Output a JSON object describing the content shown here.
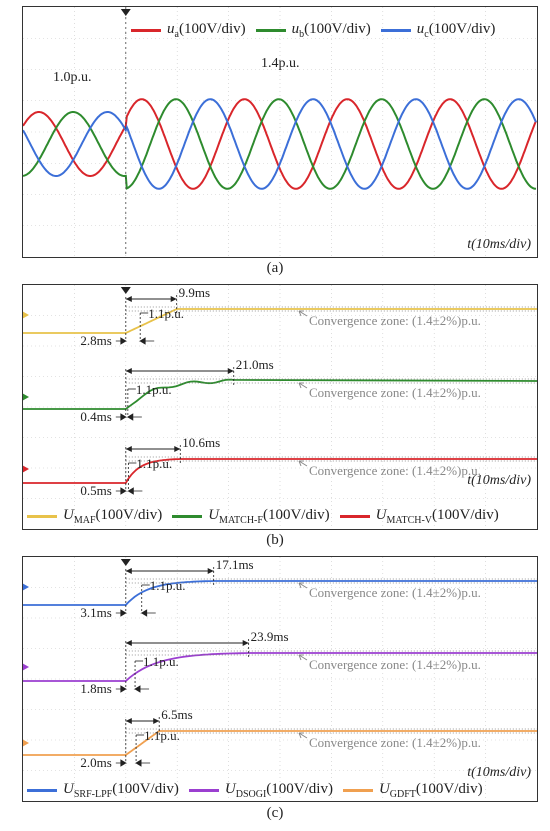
{
  "captions": {
    "a": "(a)",
    "b": "(b)",
    "c": "(c)"
  },
  "time_axis_label": "t(10ms/div)",
  "convergence_label": "Convergence zone: (1.4±2%)p.u.",
  "colors": {
    "ua": "#d9262b",
    "ub": "#2e8b2e",
    "uc": "#3c6fd8",
    "maf": "#e8c24a",
    "match_f": "#2e8b2e",
    "match_v": "#d9262b",
    "srf": "#3c6fd8",
    "dsogi": "#9b3fd0",
    "gdft": "#f0a050",
    "grid": "#c8c8c8",
    "annot": "#222222",
    "conv": "#888888"
  },
  "chart_data": [
    {
      "type": "line",
      "panel": "a",
      "title": "",
      "xlabel": "t(10ms/div)",
      "legend": [
        {
          "sym": "u",
          "sub": "a",
          "unit": "(100V/div)",
          "color": "#d9262b"
        },
        {
          "sym": "u",
          "sub": "b",
          "unit": "(100V/div)",
          "color": "#2e8b2e"
        },
        {
          "sym": "u",
          "sub": "c",
          "unit": "(100V/div)",
          "color": "#3c6fd8"
        }
      ],
      "annotations": [
        "1.0p.u.",
        "1.4p.u."
      ],
      "x_range_ms": [
        0,
        100
      ],
      "step_time_ms": 20,
      "frequency_hz": 50,
      "amplitude_before_pu": 1.0,
      "amplitude_after_pu": 1.4,
      "series": [
        {
          "name": "ua",
          "phase_deg": 0
        },
        {
          "name": "ub",
          "phase_deg": -120
        },
        {
          "name": "uc",
          "phase_deg": 120
        }
      ]
    },
    {
      "type": "line",
      "panel": "b",
      "xlabel": "t(10ms/div)",
      "legend": [
        {
          "sym": "U",
          "sub": "MAF",
          "unit": "(100V/div)",
          "color": "#e8c24a"
        },
        {
          "sym": "U",
          "sub": "MATCH-F",
          "unit": "(100V/div)",
          "color": "#2e8b2e"
        },
        {
          "sym": "U",
          "sub": "MATCH-V",
          "unit": "(100V/div)",
          "color": "#d9262b"
        }
      ],
      "step_time_ms": 20,
      "initial_pu": 1.0,
      "final_pu": 1.4,
      "traces": [
        {
          "name": "MAF",
          "delay_label": "2.8ms",
          "settle_label": "9.9ms",
          "delay_ms": 2.8,
          "settle_ms": 9.9,
          "pu_label": "1.1p.u."
        },
        {
          "name": "MATCH-F",
          "delay_label": "0.4ms",
          "settle_label": "21.0ms",
          "delay_ms": 0.4,
          "settle_ms": 21.0,
          "pu_label": "1.1p.u."
        },
        {
          "name": "MATCH-V",
          "delay_label": "0.5ms",
          "settle_label": "10.6ms",
          "delay_ms": 0.5,
          "settle_ms": 10.6,
          "pu_label": "1.1p.u."
        }
      ]
    },
    {
      "type": "line",
      "panel": "c",
      "xlabel": "t(10ms/div)",
      "legend": [
        {
          "sym": "U",
          "sub": "SRF-LPF",
          "unit": "(100V/div)",
          "color": "#3c6fd8"
        },
        {
          "sym": "U",
          "sub": "DSOGI",
          "unit": "(100V/div)",
          "color": "#9b3fd0"
        },
        {
          "sym": "U",
          "sub": "GDFT",
          "unit": "(100V/div)",
          "color": "#f0a050"
        }
      ],
      "step_time_ms": 20,
      "initial_pu": 1.0,
      "final_pu": 1.4,
      "traces": [
        {
          "name": "SRF-LPF",
          "delay_label": "3.1ms",
          "settle_label": "17.1ms",
          "delay_ms": 3.1,
          "settle_ms": 17.1,
          "pu_label": "1.1p.u."
        },
        {
          "name": "DSOGI",
          "delay_label": "1.8ms",
          "settle_label": "23.9ms",
          "delay_ms": 1.8,
          "settle_ms": 23.9,
          "pu_label": "1.1p.u."
        },
        {
          "name": "GDFT",
          "delay_label": "2.0ms",
          "settle_label": "6.5ms",
          "delay_ms": 2.0,
          "settle_ms": 6.5,
          "pu_label": "1.1p.u."
        }
      ]
    }
  ]
}
